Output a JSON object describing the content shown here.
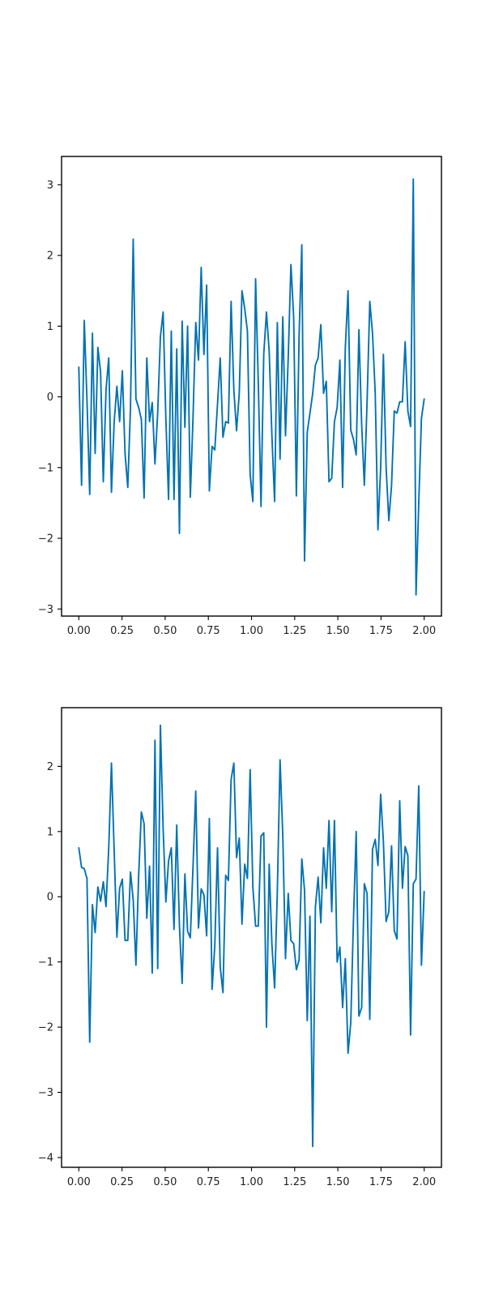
{
  "chart_data": [
    {
      "type": "line",
      "color": "#0072b2",
      "grid": false,
      "xlim": [
        -0.1,
        2.1
      ],
      "ylim": [
        -3.1,
        3.4
      ],
      "xticks": [
        "0.00",
        "0.25",
        "0.50",
        "0.75",
        "1.00",
        "1.25",
        "1.50",
        "1.75",
        "2.00"
      ],
      "yticks": [
        "−3",
        "−2",
        "−1",
        "0",
        "1",
        "2",
        "3"
      ],
      "series": [
        {
          "x_start": 0,
          "x_end": 2,
          "values": [
            0.42,
            -1.25,
            1.08,
            -0.05,
            -1.38,
            0.9,
            -0.8,
            0.7,
            0.35,
            -1.2,
            0.1,
            0.55,
            -1.35,
            -0.35,
            0.15,
            -0.35,
            0.37,
            -0.8,
            -1.28,
            -0.15,
            2.23,
            -0.03,
            -0.15,
            -0.32,
            -1.43,
            0.55,
            -0.35,
            -0.08,
            -0.95,
            -0.22,
            0.85,
            1.2,
            -0.3,
            -1.45,
            0.93,
            -1.45,
            0.68,
            -1.93,
            1.07,
            -0.43,
            1.0,
            -1.42,
            -0.28,
            1.05,
            0.52,
            1.83,
            0.6,
            1.58,
            -1.33,
            -0.7,
            -0.75,
            -0.1,
            0.55,
            -0.57,
            -0.35,
            -0.37,
            1.35,
            0.1,
            -0.48,
            0.05,
            1.5,
            1.25,
            0.93,
            -1.1,
            -1.48,
            1.67,
            0.2,
            -1.55,
            0.6,
            1.2,
            0.65,
            -0.55,
            -1.48,
            1.05,
            -0.88,
            1.13,
            -0.55,
            0.55,
            1.87,
            1.13,
            -1.4,
            0.87,
            2.15,
            -2.32,
            -0.5,
            -0.23,
            0.05,
            0.45,
            0.55,
            1.02,
            0.05,
            0.22,
            -1.2,
            -1.15,
            -0.35,
            -0.15,
            0.52,
            -1.28,
            0.7,
            1.5,
            -0.47,
            -0.6,
            -0.82,
            0.95,
            -0.38,
            -1.25,
            -0.08,
            1.35,
            0.9,
            0.05,
            -1.88,
            -1.0,
            0.6,
            -1.0,
            -1.75,
            -1.25,
            -0.2,
            -0.23,
            -0.07,
            -0.07,
            0.78,
            -0.2,
            -0.42,
            3.08,
            -2.8,
            -1.5,
            -0.3,
            -0.03
          ]
        }
      ]
    },
    {
      "type": "line",
      "color": "#0072b2",
      "grid": false,
      "xlim": [
        -0.1,
        2.1
      ],
      "ylim": [
        -4.15,
        2.9
      ],
      "xticks": [
        "0.00",
        "0.25",
        "0.50",
        "0.75",
        "1.00",
        "1.25",
        "1.50",
        "1.75",
        "2.00"
      ],
      "yticks": [
        "−4",
        "−3",
        "−2",
        "−1",
        "0",
        "1",
        "2"
      ],
      "series": [
        {
          "x_start": 0,
          "x_end": 2,
          "values": [
            0.75,
            0.45,
            0.43,
            0.28,
            -2.23,
            -0.12,
            -0.55,
            0.15,
            -0.07,
            0.23,
            -0.15,
            0.75,
            2.05,
            0.7,
            -0.62,
            0.13,
            0.27,
            -0.67,
            -0.67,
            0.38,
            -0.05,
            -1.05,
            0.33,
            1.3,
            1.12,
            -0.33,
            0.47,
            -1.17,
            2.4,
            -1.1,
            2.63,
            1.05,
            -0.08,
            0.55,
            0.75,
            -0.5,
            1.1,
            -0.45,
            -1.33,
            0.35,
            -0.53,
            -0.63,
            0.47,
            1.62,
            -0.48,
            0.12,
            0.03,
            -0.6,
            1.2,
            -1.42,
            -0.75,
            0.75,
            -1.08,
            -1.47,
            0.33,
            0.25,
            1.8,
            2.05,
            0.6,
            0.9,
            -0.42,
            0.5,
            0.28,
            1.95,
            0.15,
            -0.45,
            -0.45,
            0.93,
            0.98,
            -2.0,
            0.5,
            -0.73,
            -1.4,
            0.08,
            2.1,
            0.95,
            -0.95,
            0.05,
            -0.67,
            -0.72,
            -1.12,
            -0.97,
            0.58,
            0.1,
            -1.9,
            -0.3,
            -3.83,
            -0.15,
            0.3,
            -0.4,
            0.75,
            0.13,
            1.17,
            -0.23,
            1.17,
            -1.0,
            -0.77,
            -1.7,
            -0.95,
            -2.4,
            -1.93,
            -0.35,
            1.0,
            -1.83,
            -1.7,
            0.2,
            0.05,
            -1.88,
            0.73,
            0.88,
            0.48,
            1.57,
            0.85,
            -0.38,
            -0.23,
            0.78,
            -0.52,
            -0.65,
            1.47,
            0.13,
            0.77,
            0.63,
            -2.12,
            0.2,
            0.27,
            1.7,
            -1.05,
            0.08
          ]
        }
      ]
    }
  ]
}
